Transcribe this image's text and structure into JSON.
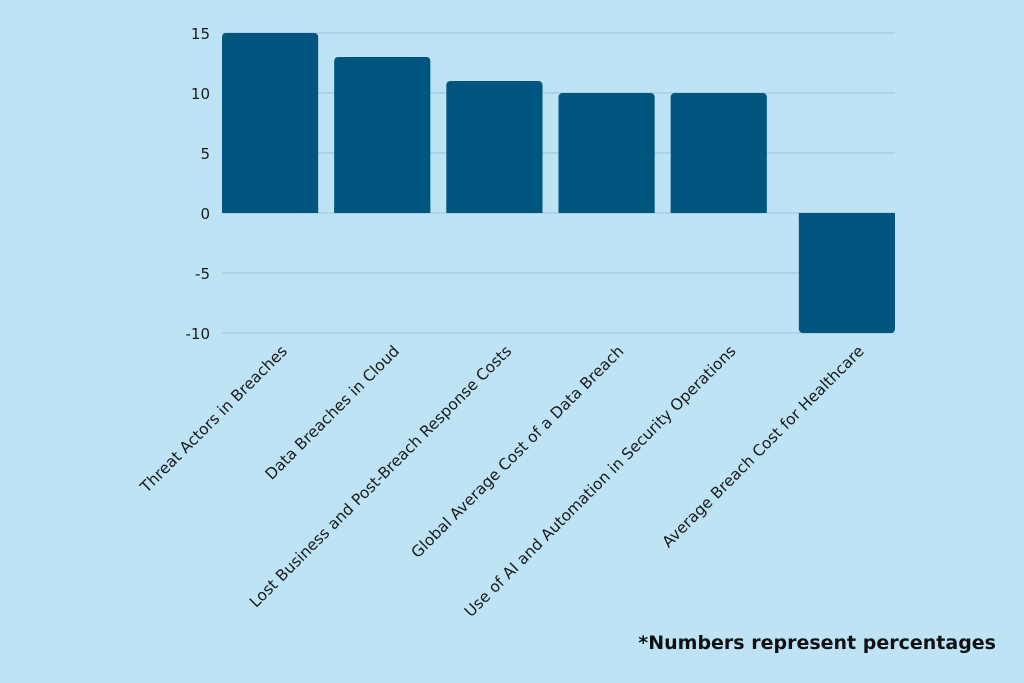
{
  "chart_data": {
    "type": "bar",
    "categories": [
      "Threat Actors in Breaches",
      "Data Breaches in Cloud",
      "Lost Business and Post-Breach Response Costs",
      "Global Average Cost of a Data Breach",
      "Use of AI and Automation in Security Operations",
      "Average Breach Cost for Healthcare"
    ],
    "values": [
      15,
      13,
      11,
      10,
      10,
      -10
    ],
    "title": "",
    "xlabel": "",
    "ylabel": "",
    "ylim": [
      -10,
      15
    ],
    "yticks": [
      15,
      10,
      5,
      0,
      -5,
      -10
    ],
    "grid": true,
    "legend": "none",
    "colors": {
      "bar": "#01567f",
      "background": "#bde3f5",
      "grid": "#9cc3d8",
      "text": "#1a1a1a"
    }
  },
  "footnote": "*Numbers represent percentages"
}
